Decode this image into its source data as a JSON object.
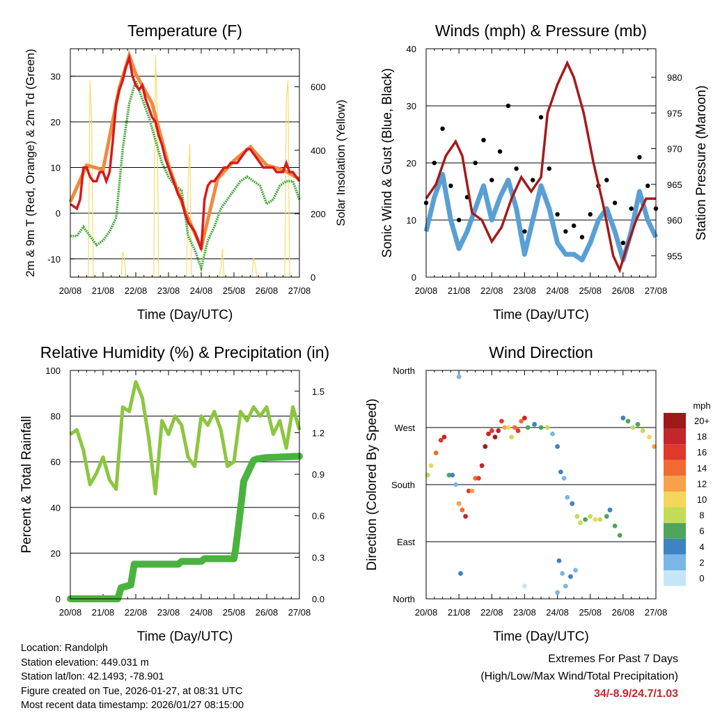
{
  "colors": {
    "air_temp_2m": "#d7191c",
    "air_temp_9m": "#f08a3c",
    "dewpoint": "#46a83c",
    "solar": "#f5dc6a",
    "wind": "#5a9fd4",
    "gust": "#000000",
    "pressure": "#a41a1a",
    "rh": "#8cc63f",
    "precip": "#4ab33f",
    "extremes": "#c0262b"
  },
  "footer": {
    "location": "Location: Randolph",
    "elevation": "Station elevation: 449.031 m",
    "latlon": "Station lat/lon: 42.1493; -78.901",
    "created": "Figure created on Tue, 2026-01-27, at 08:31 UTC",
    "recent": "Most recent data timestamp: 2026/01/27 08:15:00"
  },
  "extremes": {
    "line1": "Extremes For Past 7 Days",
    "line2": "(High/Low/Max Wind/Total Precipitation)",
    "values": "34/-8.9/24.7/1.03"
  },
  "chart_data": [
    {
      "id": "temperature",
      "type": "line",
      "title": "Temperature (F)",
      "xlabel": "Time (Day/UTC)",
      "ylabel": "2m & 9m T (Red, Orange) & 2m Td (Green)",
      "y2label": "Solar Insolation (Yellow)",
      "xticks": [
        "20/08",
        "21/08",
        "22/08",
        "23/08",
        "24/08",
        "25/08",
        "26/08",
        "27/08"
      ],
      "xlim": [
        0,
        7
      ],
      "ylim": [
        -14,
        36
      ],
      "yticks": [
        -10,
        0,
        10,
        20,
        30
      ],
      "y2lim": [
        0,
        720
      ],
      "y2ticks": [
        0,
        200,
        400,
        600
      ],
      "series": [
        {
          "name": "2m Temperature",
          "color": "#d7191c",
          "x": [
            0,
            0.1,
            0.2,
            0.3,
            0.4,
            0.5,
            0.6,
            0.7,
            0.8,
            0.9,
            1.0,
            1.1,
            1.2,
            1.3,
            1.4,
            1.5,
            1.6,
            1.7,
            1.8,
            1.9,
            2.0,
            2.1,
            2.2,
            2.3,
            2.4,
            2.5,
            2.6,
            2.7,
            2.8,
            2.9,
            3.0,
            3.1,
            3.2,
            3.3,
            3.4,
            3.5,
            3.6,
            3.7,
            3.8,
            3.9,
            4.0,
            4.1,
            4.2,
            4.3,
            4.4,
            4.5,
            4.6,
            4.7,
            4.8,
            4.9,
            5.0,
            5.1,
            5.2,
            5.3,
            5.4,
            5.5,
            5.6,
            5.7,
            5.8,
            5.9,
            6.0,
            6.1,
            6.2,
            6.3,
            6.4,
            6.5,
            6.6,
            6.7,
            6.8,
            6.9,
            7.0
          ],
          "values": [
            2,
            1.5,
            1,
            3,
            10,
            10,
            8,
            7,
            7,
            9,
            9,
            7,
            9,
            16,
            24,
            27,
            29,
            32,
            34,
            30,
            28,
            27,
            28,
            25,
            23,
            21,
            20,
            17,
            15,
            12,
            10,
            8,
            6,
            4,
            3,
            0,
            -2,
            -3,
            -4,
            -6,
            -8,
            3,
            6,
            7,
            7,
            8,
            9,
            10,
            10,
            11,
            11,
            11,
            12,
            13,
            14,
            14,
            13,
            12,
            11,
            10,
            10,
            10,
            10,
            9,
            9,
            9,
            11,
            9,
            9,
            8,
            7
          ]
        },
        {
          "name": "9m Temperature",
          "color": "#f08a3c",
          "x": [
            0,
            0.5,
            1.0,
            1.5,
            1.8,
            2.0,
            2.5,
            3.0,
            3.5,
            4.0,
            4.5,
            5.0,
            5.5,
            6.0,
            6.5,
            7.0
          ],
          "values": [
            2.5,
            10.5,
            9.5,
            27.5,
            34.5,
            30.5,
            24,
            10.5,
            0.5,
            -7.5,
            7.5,
            11.5,
            14.5,
            10.5,
            9.5,
            7.5
          ]
        },
        {
          "name": "2m Dewpoint",
          "color": "#46a83c",
          "x": [
            0,
            0.2,
            0.4,
            0.6,
            0.8,
            1.0,
            1.2,
            1.4,
            1.6,
            1.8,
            2.0,
            2.2,
            2.4,
            2.6,
            2.8,
            3.0,
            3.2,
            3.4,
            3.6,
            3.8,
            4.0,
            4.2,
            4.4,
            4.6,
            4.8,
            5.0,
            5.2,
            5.4,
            5.6,
            5.8,
            6.0,
            6.2,
            6.4,
            6.6,
            6.8,
            7.0
          ],
          "values": [
            -5,
            -5,
            -3,
            -5,
            -7,
            -6,
            -4,
            -1,
            14,
            24,
            29,
            25,
            21,
            16,
            11,
            8,
            6,
            5,
            -5,
            -8,
            -12,
            -6,
            -3,
            1,
            3,
            5,
            7,
            8,
            7,
            6,
            2,
            3,
            6,
            7,
            7,
            3
          ]
        }
      ],
      "solar": {
        "name": "Solar Insolation",
        "color": "#f5dc6a",
        "x": [
          0,
          0.55,
          0.6,
          0.65,
          0.7,
          1.0,
          1.55,
          1.6,
          1.65,
          1.7,
          2.0,
          2.55,
          2.6,
          2.65,
          2.7,
          3.0,
          3.55,
          3.6,
          3.65,
          3.7,
          4.0,
          4.55,
          4.6,
          4.65,
          4.7,
          5.0,
          5.55,
          5.6,
          5.65,
          5.7,
          6.0,
          6.55,
          6.6,
          6.65,
          6.7,
          7.0
        ],
        "values": [
          0,
          0,
          620,
          500,
          0,
          0,
          0,
          80,
          60,
          0,
          0,
          0,
          700,
          540,
          0,
          0,
          0,
          300,
          420,
          0,
          0,
          0,
          30,
          90,
          0,
          0,
          0,
          60,
          40,
          0,
          0,
          0,
          560,
          620,
          0,
          0
        ]
      }
    },
    {
      "id": "winds",
      "type": "scatter",
      "title": "Winds (mph) & Pressure (mb)",
      "xlabel": "Time (Day/UTC)",
      "ylabel": "Sonic Wind & Gust (Blue, Black)",
      "y2label": "Station Pressure (Maroon)",
      "xticks": [
        "20/08",
        "21/08",
        "22/08",
        "23/08",
        "24/08",
        "25/08",
        "26/08",
        "27/08"
      ],
      "xlim": [
        0,
        7
      ],
      "ylim": [
        0,
        40
      ],
      "yticks": [
        0,
        10,
        20,
        30,
        40
      ],
      "y2lim": [
        952,
        984
      ],
      "y2ticks": [
        955,
        960,
        965,
        970,
        975,
        980
      ],
      "series": [
        {
          "name": "Sonic Wind",
          "color": "#5a9fd4",
          "x": [
            0,
            0.25,
            0.5,
            0.75,
            1.0,
            1.25,
            1.5,
            1.75,
            2.0,
            2.25,
            2.5,
            2.75,
            3.0,
            3.25,
            3.5,
            3.75,
            4.0,
            4.25,
            4.5,
            4.75,
            5.0,
            5.25,
            5.5,
            5.75,
            6.0,
            6.25,
            6.5,
            6.75,
            7.0
          ],
          "values": [
            8,
            14,
            18,
            10,
            5,
            8,
            12,
            16,
            10,
            14,
            17,
            12,
            4,
            10,
            16,
            12,
            6,
            4,
            4,
            3,
            6,
            10,
            12,
            8,
            3,
            8,
            15,
            10,
            7
          ]
        },
        {
          "name": "Gust",
          "color": "#000000",
          "x": [
            0,
            0.25,
            0.5,
            0.75,
            1.0,
            1.25,
            1.5,
            1.75,
            2.0,
            2.25,
            2.5,
            2.75,
            3.0,
            3.25,
            3.5,
            3.75,
            4.0,
            4.25,
            4.5,
            4.75,
            5.0,
            5.25,
            5.5,
            5.75,
            6.0,
            6.25,
            6.5,
            6.75,
            7.0
          ],
          "values": [
            13,
            20,
            26,
            16,
            10,
            14,
            20,
            24,
            17,
            22,
            30,
            19,
            8,
            17,
            28,
            19,
            11,
            8,
            9,
            7,
            11,
            16,
            17,
            13,
            6,
            12,
            21,
            16,
            12
          ]
        },
        {
          "name": "Station Pressure",
          "color": "#a41a1a",
          "x": [
            0,
            0.3,
            0.6,
            0.9,
            1.1,
            1.4,
            1.7,
            2.0,
            2.3,
            2.6,
            2.9,
            3.2,
            3.5,
            3.7,
            4.0,
            4.3,
            4.5,
            4.8,
            5.1,
            5.4,
            5.7,
            5.9,
            6.1,
            6.4,
            6.7,
            7.0
          ],
          "values": [
            963,
            965,
            969,
            971,
            969,
            961,
            960,
            957,
            959,
            963,
            966,
            964,
            966,
            975,
            979,
            982,
            980,
            975,
            968,
            962,
            955,
            953,
            956,
            960,
            963,
            963
          ]
        }
      ]
    },
    {
      "id": "humidity",
      "type": "line",
      "title": "Relative Humidity (%) & Precipitation (in)",
      "xlabel": "Time (Day/UTC)",
      "ylabel": "Percent & Total Rainfall",
      "xticks": [
        "20/08",
        "21/08",
        "22/08",
        "23/08",
        "24/08",
        "25/08",
        "26/08",
        "27/08"
      ],
      "xlim": [
        0,
        7
      ],
      "ylim": [
        0,
        100
      ],
      "yticks": [
        0,
        20,
        40,
        60,
        80,
        100
      ],
      "y2lim": [
        0,
        1.65
      ],
      "y2ticks": [
        "0.0",
        "0.3",
        "0.6",
        "0.9",
        "1.2",
        "1.5"
      ],
      "series": [
        {
          "name": "Relative Humidity",
          "color": "#8cc63f",
          "x": [
            0,
            0.2,
            0.4,
            0.6,
            0.8,
            1.0,
            1.2,
            1.4,
            1.6,
            1.8,
            2.0,
            2.2,
            2.4,
            2.6,
            2.8,
            3.0,
            3.2,
            3.4,
            3.6,
            3.8,
            4.0,
            4.2,
            4.4,
            4.6,
            4.8,
            5.0,
            5.2,
            5.4,
            5.6,
            5.8,
            6.0,
            6.2,
            6.4,
            6.6,
            6.8,
            7.0
          ],
          "values": [
            72,
            74,
            65,
            50,
            55,
            62,
            52,
            48,
            84,
            82,
            95,
            88,
            70,
            46,
            78,
            72,
            80,
            76,
            62,
            58,
            80,
            76,
            82,
            74,
            58,
            60,
            82,
            78,
            84,
            80,
            84,
            72,
            78,
            66,
            84,
            74
          ]
        },
        {
          "name": "Total Precipitation",
          "color": "#4ab33f",
          "x": [
            0,
            1.45,
            1.55,
            1.85,
            1.95,
            3.3,
            3.4,
            4.0,
            4.1,
            5.0,
            5.05,
            5.15,
            5.3,
            5.6,
            5.7,
            6.0,
            7.0
          ],
          "values": [
            0,
            0,
            0.08,
            0.1,
            0.25,
            0.25,
            0.27,
            0.27,
            0.29,
            0.29,
            0.36,
            0.55,
            0.85,
            1.0,
            1.01,
            1.02,
            1.03
          ]
        }
      ]
    },
    {
      "id": "wind_direction",
      "type": "scatter",
      "title": "Wind Direction",
      "xlabel": "Time (Day/UTC)",
      "ylabel": "Direction (Colored By Speed)",
      "xticks": [
        "20/08",
        "21/08",
        "22/08",
        "23/08",
        "24/08",
        "25/08",
        "26/08",
        "27/08"
      ],
      "xlim": [
        0,
        7
      ],
      "ylim": [
        0,
        360
      ],
      "yticks": [
        "North",
        "East",
        "South",
        "West",
        "North"
      ],
      "legend": {
        "title": "mph",
        "labels": [
          "20+",
          "18",
          "16",
          "14",
          "12",
          "10",
          "8",
          "6",
          "4",
          "2",
          "0"
        ],
        "colors": [
          "#9e1a1a",
          "#c4262b",
          "#e0382a",
          "#f26a32",
          "#f8a14a",
          "#f3d65a",
          "#c3dc58",
          "#4fa65a",
          "#3e83c4",
          "#7ab7e6",
          "#c6e6f8"
        ]
      },
      "points": {
        "x": [
          0.05,
          0.15,
          0.3,
          0.45,
          0.55,
          0.7,
          0.8,
          0.9,
          1.0,
          1.1,
          1.2,
          1.3,
          1.4,
          1.5,
          1.6,
          1.7,
          1.8,
          1.9,
          2.0,
          2.1,
          2.2,
          2.3,
          2.4,
          2.5,
          2.6,
          2.7,
          2.8,
          2.9,
          3.0,
          3.1,
          3.3,
          3.5,
          3.7,
          3.85,
          4.0,
          4.1,
          4.2,
          4.3,
          4.45,
          4.6,
          4.7,
          4.85,
          5.0,
          5.15,
          5.3,
          5.5,
          5.6,
          5.75,
          5.9,
          6.0,
          6.15,
          6.3,
          6.45,
          6.6,
          6.8,
          6.95,
          4.05,
          4.15,
          4.25,
          4.4,
          4.55,
          1.0,
          1.05,
          3.0,
          4.0
        ],
        "dir": [
          195,
          210,
          230,
          250,
          255,
          195,
          195,
          180,
          150,
          140,
          130,
          170,
          170,
          190,
          190,
          210,
          240,
          260,
          265,
          255,
          265,
          280,
          270,
          270,
          255,
          270,
          265,
          280,
          285,
          270,
          275,
          270,
          270,
          260,
          240,
          200,
          190,
          160,
          150,
          130,
          120,
          125,
          130,
          125,
          125,
          130,
          140,
          115,
          100,
          285,
          280,
          270,
          275,
          265,
          255,
          240,
          60,
          40,
          20,
          35,
          45,
          350,
          40,
          20,
          10
        ],
        "speed": [
          8,
          10,
          14,
          16,
          18,
          6,
          4,
          2,
          12,
          14,
          18,
          16,
          12,
          14,
          16,
          18,
          20,
          18,
          16,
          20,
          18,
          16,
          12,
          10,
          8,
          14,
          16,
          14,
          18,
          6,
          4,
          6,
          8,
          2,
          4,
          4,
          2,
          2,
          4,
          8,
          8,
          6,
          8,
          10,
          8,
          6,
          4,
          6,
          6,
          4,
          6,
          8,
          6,
          8,
          10,
          12,
          4,
          2,
          2,
          4,
          2,
          2,
          4,
          0,
          2
        ]
      }
    }
  ]
}
